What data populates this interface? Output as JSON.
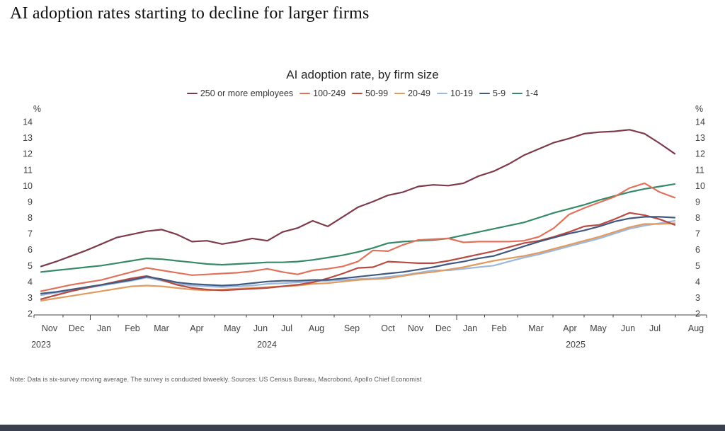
{
  "page": {
    "title": "AI adoption rates starting to decline for larger firms",
    "note": "Note: Data is six-survey moving average. The survey is conducted biweekly. Sources: US Census Bureau, Macrobond, Apollo Chief Economist"
  },
  "chart_data": {
    "type": "line",
    "title": "AI adoption rate, by firm size",
    "unit": "%",
    "ylim": [
      2,
      14
    ],
    "yticks": [
      2,
      3,
      4,
      5,
      6,
      7,
      8,
      9,
      10,
      11,
      12,
      13,
      14
    ],
    "grid": false,
    "legend_position": "top",
    "x_start": "Nov 2023",
    "x_end": "Jul 2025",
    "x_frequency": "biweekly",
    "x_tick_labels": [
      "Nov",
      "Dec",
      "Jan",
      "Feb",
      "Mar",
      "Apr",
      "May",
      "Jun",
      "Jul",
      "Aug",
      "Sep",
      "Oct",
      "Nov",
      "Dec",
      "Jan",
      "Feb",
      "Mar",
      "Apr",
      "May",
      "Jun",
      "Jul",
      "Aug"
    ],
    "year_labels": [
      "2023",
      "2024",
      "2025"
    ],
    "series": [
      {
        "name": "250 or more employees",
        "color": "#7c3a4a",
        "values": [
          4.95,
          5.25,
          5.6,
          5.95,
          6.35,
          6.75,
          6.95,
          7.15,
          7.25,
          6.95,
          6.5,
          6.55,
          6.35,
          6.5,
          6.7,
          6.55,
          7.1,
          7.35,
          7.8,
          7.45,
          8.05,
          8.65,
          9.0,
          9.4,
          9.6,
          9.95,
          10.05,
          10.0,
          10.15,
          10.6,
          10.9,
          11.35,
          11.9,
          12.3,
          12.7,
          12.95,
          13.25,
          13.35,
          13.4,
          13.5,
          13.25,
          12.65,
          12.0
        ]
      },
      {
        "name": "100-249",
        "color": "#e0725c",
        "values": [
          3.4,
          3.6,
          3.8,
          3.95,
          4.1,
          4.35,
          4.6,
          4.85,
          4.7,
          4.55,
          4.4,
          4.45,
          4.5,
          4.55,
          4.65,
          4.8,
          4.6,
          4.45,
          4.7,
          4.8,
          4.95,
          5.25,
          5.95,
          5.9,
          6.3,
          6.6,
          6.65,
          6.7,
          6.45,
          6.5,
          6.5,
          6.5,
          6.55,
          6.8,
          7.35,
          8.2,
          8.6,
          8.95,
          9.3,
          9.85,
          10.15,
          9.6,
          9.25
        ]
      },
      {
        "name": "50-99",
        "color": "#b94a42",
        "values": [
          2.9,
          3.15,
          3.4,
          3.6,
          3.8,
          4.0,
          4.2,
          4.35,
          4.1,
          3.8,
          3.6,
          3.5,
          3.45,
          3.5,
          3.55,
          3.6,
          3.7,
          3.8,
          3.95,
          4.2,
          4.5,
          4.85,
          4.9,
          5.25,
          5.2,
          5.15,
          5.15,
          5.3,
          5.5,
          5.7,
          5.9,
          6.15,
          6.4,
          6.55,
          6.8,
          7.1,
          7.45,
          7.55,
          7.9,
          8.3,
          8.15,
          7.9,
          7.55
        ]
      },
      {
        "name": "20-49",
        "color": "#e29a5e",
        "values": [
          2.8,
          2.95,
          3.1,
          3.25,
          3.4,
          3.55,
          3.7,
          3.75,
          3.7,
          3.6,
          3.5,
          3.45,
          3.5,
          3.55,
          3.6,
          3.65,
          3.7,
          3.75,
          3.85,
          3.9,
          4.0,
          4.1,
          4.15,
          4.2,
          4.35,
          4.5,
          4.6,
          4.75,
          4.9,
          5.1,
          5.3,
          5.45,
          5.6,
          5.8,
          6.05,
          6.3,
          6.55,
          6.8,
          7.1,
          7.4,
          7.6,
          7.6,
          7.65
        ]
      },
      {
        "name": "10-19",
        "color": "#9ab8e0",
        "values": [
          3.15,
          3.3,
          3.45,
          3.6,
          3.75,
          3.9,
          4.05,
          4.25,
          4.05,
          3.85,
          3.75,
          3.7,
          3.65,
          3.7,
          3.75,
          3.85,
          3.9,
          3.95,
          4.0,
          4.05,
          4.1,
          4.15,
          4.2,
          4.3,
          4.4,
          4.55,
          4.7,
          4.7,
          4.8,
          4.9,
          5.0,
          5.25,
          5.5,
          5.7,
          5.95,
          6.2,
          6.45,
          6.7,
          7.0,
          7.3,
          7.5,
          7.65,
          7.8
        ]
      },
      {
        "name": "5-9",
        "color": "#41597f",
        "values": [
          3.25,
          3.35,
          3.5,
          3.65,
          3.8,
          3.95,
          4.1,
          4.3,
          4.15,
          3.95,
          3.85,
          3.8,
          3.75,
          3.8,
          3.9,
          4.0,
          4.05,
          4.05,
          4.1,
          4.1,
          4.2,
          4.3,
          4.4,
          4.5,
          4.6,
          4.75,
          4.9,
          5.1,
          5.25,
          5.45,
          5.6,
          5.9,
          6.2,
          6.5,
          6.75,
          7.0,
          7.2,
          7.45,
          7.75,
          7.95,
          8.05,
          8.05,
          8.0
        ]
      },
      {
        "name": "1-4",
        "color": "#368a68",
        "values": [
          4.6,
          4.7,
          4.8,
          4.9,
          5.0,
          5.15,
          5.3,
          5.45,
          5.4,
          5.3,
          5.2,
          5.1,
          5.05,
          5.1,
          5.15,
          5.2,
          5.2,
          5.25,
          5.35,
          5.5,
          5.65,
          5.85,
          6.1,
          6.4,
          6.5,
          6.55,
          6.6,
          6.7,
          6.9,
          7.1,
          7.3,
          7.5,
          7.7,
          8.0,
          8.3,
          8.55,
          8.8,
          9.1,
          9.35,
          9.6,
          9.8,
          9.95,
          10.1
        ]
      }
    ]
  }
}
